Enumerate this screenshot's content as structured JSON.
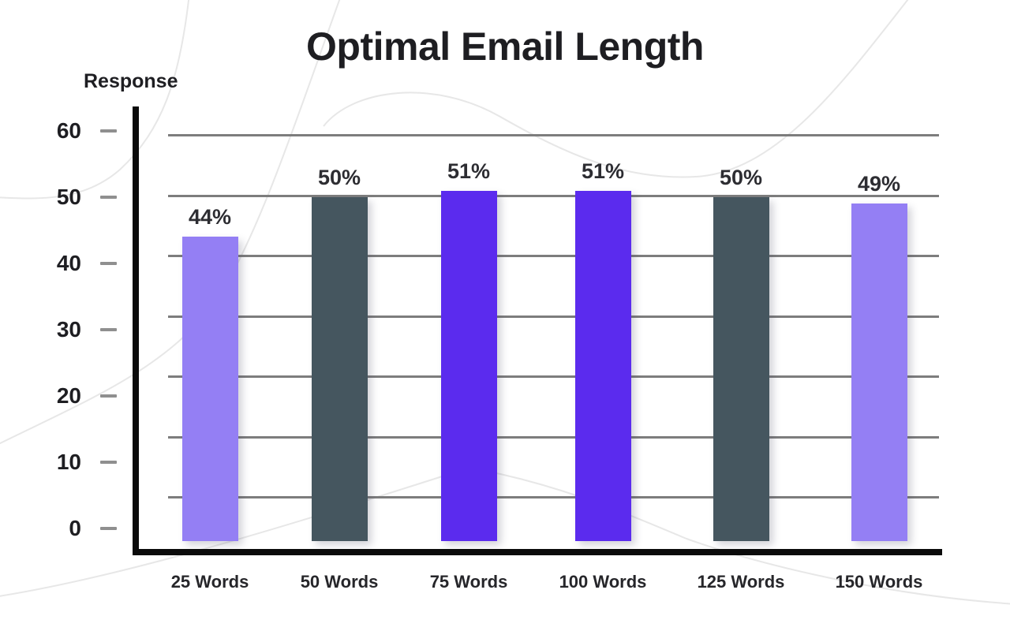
{
  "chart_data": {
    "type": "bar",
    "title": "Optimal Email Length",
    "ylabel": "Response",
    "xlabel": "",
    "categories": [
      "25 Words",
      "50 Words",
      "75 Words",
      "100 Words",
      "125 Words",
      "150 Words"
    ],
    "values": [
      44,
      50,
      51,
      51,
      50,
      49
    ],
    "value_labels": [
      "44%",
      "50%",
      "51%",
      "51%",
      "50%",
      "49%"
    ],
    "bar_colors": [
      "#947FF4",
      "#45565F",
      "#5B2BEE",
      "#5B2BEE",
      "#45565F",
      "#947FF4"
    ],
    "yticks": [
      0,
      10,
      20,
      30,
      40,
      50,
      60
    ],
    "ylim": [
      0,
      65
    ],
    "grid": true,
    "legend": false
  },
  "colors": {
    "light_purple": "#947FF4",
    "dark_slate": "#45565F",
    "vivid_purple": "#5B2BEE",
    "gridline": "#7d7d7d",
    "tick_mark": "#8f8f8f",
    "axis": "#0b0b0b",
    "title_text": "#1e1e22",
    "label_text": "#26262a",
    "value_text": "#2d2d32"
  }
}
